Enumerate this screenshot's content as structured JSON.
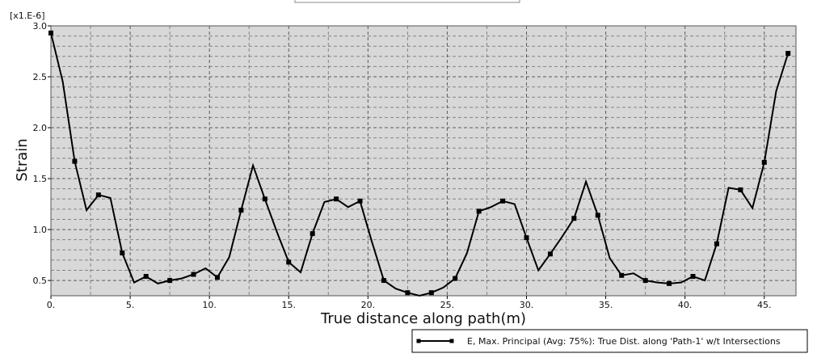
{
  "chart_data": {
    "type": "line",
    "title": "",
    "xlabel": "True distance along path(m)",
    "ylabel": "Strain",
    "y_multiplier": "[x1.E-6]",
    "xlim": [
      0,
      47
    ],
    "ylim": [
      0.35,
      3.0
    ],
    "x_ticks": [
      0,
      5,
      10,
      15,
      20,
      25,
      30,
      35,
      40,
      45
    ],
    "x_tick_labels": [
      "0.",
      "5.",
      "10.",
      "15.",
      "20.",
      "25.",
      "30.",
      "35.",
      "40.",
      "45."
    ],
    "y_ticks": [
      0.5,
      1.0,
      1.5,
      2.0,
      2.5,
      3.0
    ],
    "y_tick_labels": [
      "0.5",
      "1.0",
      "1.5",
      "2.0",
      "2.5",
      "3.0"
    ],
    "grid": true,
    "legend_position": "bottom-right",
    "colors": {
      "plot_bg": "#d8d8d8",
      "line": "#000000",
      "grid": "#333333"
    },
    "series": [
      {
        "name": "E, Max. Principal (Avg: 75%): True Dist. along 'Path-1' w/t Intersections",
        "x": [
          0.0,
          0.75,
          1.5,
          2.25,
          3.0,
          3.75,
          4.5,
          5.25,
          6.0,
          6.75,
          7.5,
          8.25,
          9.0,
          9.75,
          10.5,
          11.25,
          12.0,
          12.75,
          13.5,
          14.25,
          15.0,
          15.75,
          16.5,
          17.25,
          18.0,
          18.75,
          19.5,
          20.25,
          21.0,
          21.75,
          22.5,
          23.25,
          24.0,
          24.75,
          25.5,
          26.25,
          27.0,
          27.75,
          28.5,
          29.25,
          30.0,
          30.75,
          31.5,
          32.25,
          33.0,
          33.75,
          34.5,
          35.25,
          36.0,
          36.75,
          37.5,
          38.25,
          39.0,
          39.75,
          40.5,
          41.25,
          42.0,
          42.75,
          43.5,
          44.25,
          45.0,
          45.75,
          46.5
        ],
        "y": [
          2.93,
          2.45,
          1.67,
          1.19,
          1.34,
          1.31,
          0.77,
          0.48,
          0.54,
          0.47,
          0.5,
          0.52,
          0.56,
          0.62,
          0.53,
          0.73,
          1.19,
          1.63,
          1.3,
          0.98,
          0.68,
          0.58,
          0.96,
          1.27,
          1.3,
          1.22,
          1.28,
          0.88,
          0.5,
          0.42,
          0.38,
          0.35,
          0.38,
          0.43,
          0.52,
          0.77,
          1.18,
          1.22,
          1.28,
          1.25,
          0.92,
          0.6,
          0.76,
          0.93,
          1.11,
          1.47,
          1.14,
          0.72,
          0.55,
          0.57,
          0.5,
          0.48,
          0.47,
          0.48,
          0.54,
          0.5,
          0.86,
          1.41,
          1.39,
          1.21,
          1.66,
          2.36,
          2.73
        ],
        "markers": [
          0,
          2,
          4,
          6,
          8,
          10,
          12,
          14,
          16,
          18,
          20,
          22,
          24,
          26,
          28,
          30,
          32,
          34,
          36,
          38,
          40,
          42,
          44,
          46,
          48,
          50,
          52,
          54,
          56,
          58,
          60,
          62
        ]
      }
    ]
  }
}
